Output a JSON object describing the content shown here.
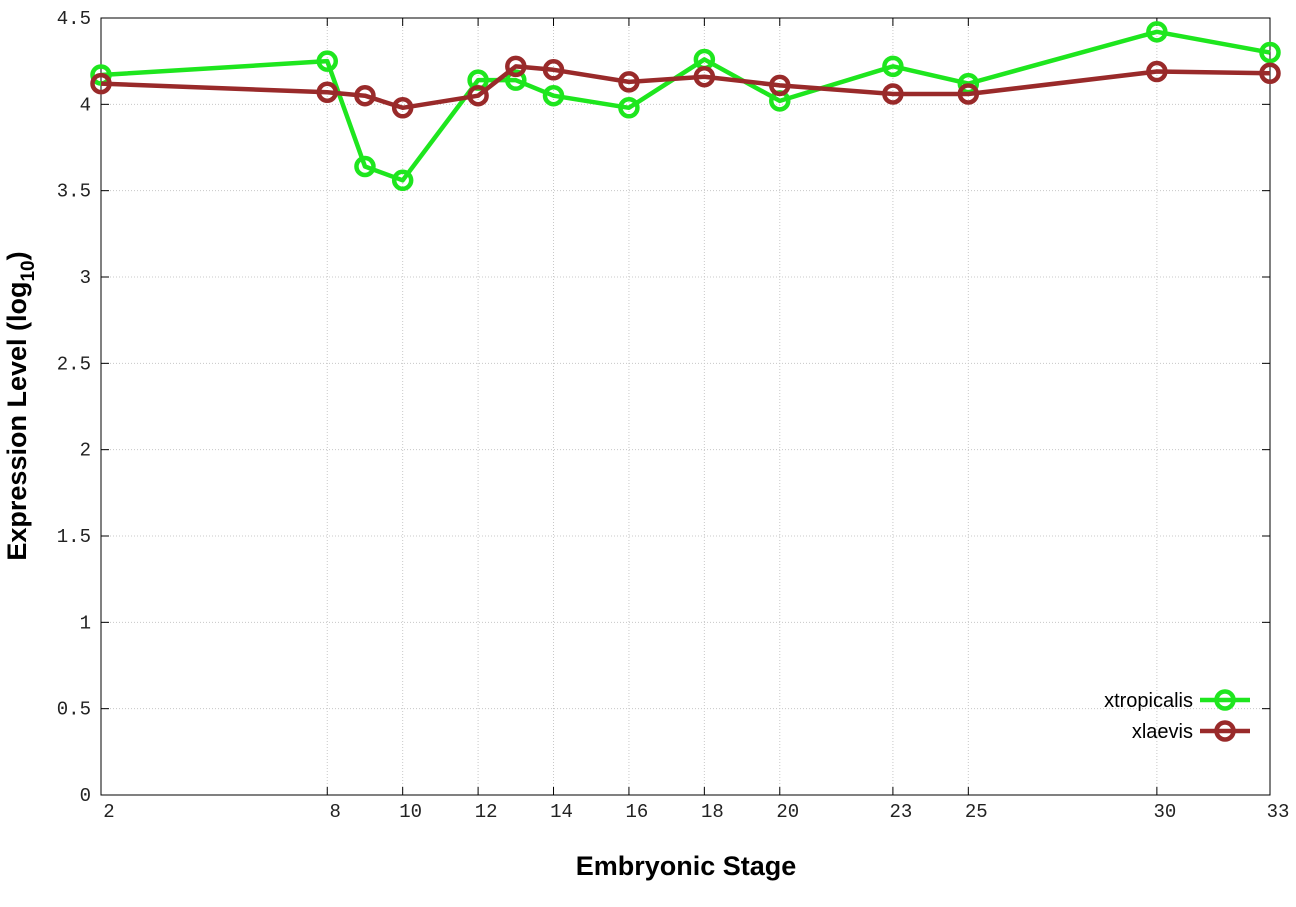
{
  "chart_data": {
    "type": "line",
    "x_label": "Embryonic Stage",
    "y_label": {
      "text": "Expression Level (log",
      "subscript": "10",
      "suffix": ")"
    },
    "x": [
      2,
      8,
      9,
      10,
      12,
      13,
      14,
      16,
      18,
      20,
      23,
      25,
      30,
      33
    ],
    "series": [
      {
        "name": "xtropicalis",
        "color": "#1ee61e",
        "values": [
          4.17,
          4.25,
          3.64,
          3.56,
          4.14,
          4.14,
          4.05,
          3.98,
          4.26,
          4.02,
          4.22,
          4.12,
          4.42,
          4.3
        ]
      },
      {
        "name": "xlaevis",
        "color": "#992a2a",
        "values": [
          4.12,
          4.07,
          4.05,
          3.98,
          4.05,
          4.22,
          4.2,
          4.13,
          4.16,
          4.11,
          4.06,
          4.06,
          4.19,
          4.18
        ]
      }
    ],
    "xlim": [
      2,
      33
    ],
    "ylim": [
      0,
      4.5
    ],
    "xticks": [
      2,
      8,
      10,
      12,
      14,
      16,
      18,
      20,
      23,
      25,
      30,
      33
    ],
    "yticks": [
      0,
      0.5,
      1,
      1.5,
      2,
      2.5,
      3,
      3.5,
      4,
      4.5
    ],
    "grid": true,
    "legend": "lower right"
  }
}
